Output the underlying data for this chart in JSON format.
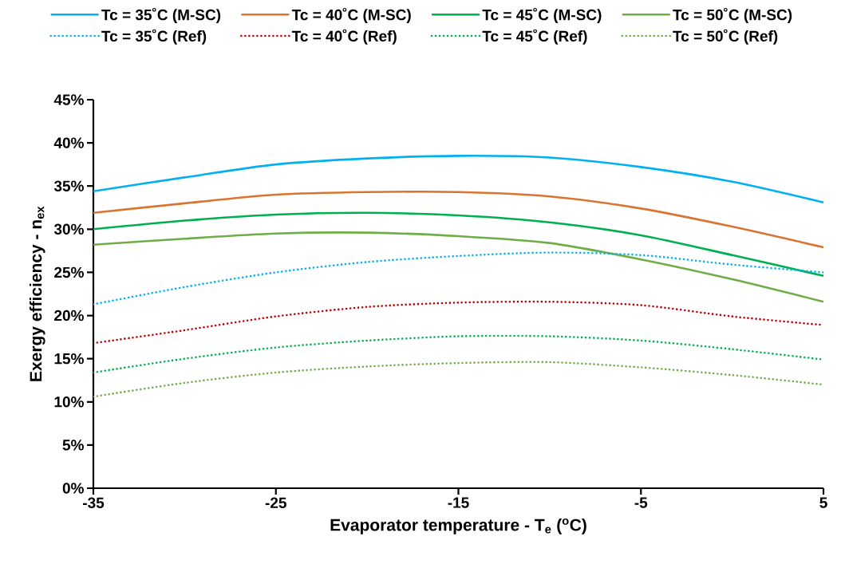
{
  "chart_data": {
    "type": "line",
    "xlabel": "Evaporator temperature - T$_{e}$ ($^{o}$C)",
    "ylabel": "Exergy efficiency - n$_{ex}$",
    "x": [
      -35,
      -30,
      -25,
      -20,
      -15,
      -10,
      -5,
      0,
      5
    ],
    "xlim": [
      -35,
      5
    ],
    "xticks": [
      -35,
      -25,
      -15,
      -5,
      5
    ],
    "ylim": [
      0,
      45
    ],
    "yticks": [
      {
        "value": 0,
        "label": "0%"
      },
      {
        "value": 5,
        "label": "5%"
      },
      {
        "value": 10,
        "label": "10%"
      },
      {
        "value": 15,
        "label": "15%"
      },
      {
        "value": 20,
        "label": "20%"
      },
      {
        "value": 25,
        "label": "25%"
      },
      {
        "value": 30,
        "label": "30%"
      },
      {
        "value": 35,
        "label": "35%"
      },
      {
        "value": 40,
        "label": "40%"
      },
      {
        "value": 45,
        "label": "45%"
      }
    ],
    "grid": false,
    "legend": "top",
    "marker": "none",
    "series": [
      {
        "name": "Tc = 35˚C (M-SC)",
        "color": "#00b0f0",
        "line_style": "solid",
        "values": [
          34.4,
          36.0,
          37.5,
          38.2,
          38.5,
          38.3,
          37.2,
          35.5,
          33.1
        ]
      },
      {
        "name": "Tc = 40˚C (M-SC)",
        "color": "#d97530",
        "line_style": "solid",
        "values": [
          31.9,
          33.0,
          34.0,
          34.3,
          34.3,
          33.8,
          32.4,
          30.3,
          27.9
        ]
      },
      {
        "name": "Tc = 45˚C (M-SC)",
        "color": "#00b050",
        "line_style": "solid",
        "values": [
          30.0,
          31.0,
          31.7,
          31.9,
          31.6,
          30.8,
          29.3,
          27.0,
          24.6
        ]
      },
      {
        "name": "Tc = 50˚C (M-SC)",
        "color": "#70ad47",
        "line_style": "solid",
        "values": [
          28.2,
          28.9,
          29.5,
          29.6,
          29.2,
          28.4,
          26.5,
          24.2,
          21.6
        ]
      },
      {
        "name": "Tc = 35˚C (Ref)",
        "color": "#00b0f0",
        "line_style": "dotted",
        "values": [
          21.3,
          23.3,
          25.0,
          26.2,
          26.9,
          27.3,
          27.0,
          25.9,
          25.0
        ]
      },
      {
        "name": "Tc = 40˚C (Ref)",
        "color": "#c00000",
        "line_style": "dotted",
        "values": [
          16.8,
          18.3,
          19.9,
          21.0,
          21.5,
          21.6,
          21.2,
          19.9,
          18.9
        ]
      },
      {
        "name": "Tc = 45˚C (Ref)",
        "color": "#00b050",
        "line_style": "dotted",
        "values": [
          13.4,
          15.0,
          16.3,
          17.1,
          17.6,
          17.6,
          17.1,
          16.1,
          14.9
        ]
      },
      {
        "name": "Tc = 50˚C (Ref)",
        "color": "#70ad47",
        "line_style": "dotted",
        "values": [
          10.6,
          12.2,
          13.4,
          14.1,
          14.5,
          14.6,
          14.0,
          13.1,
          12.0
        ]
      }
    ]
  }
}
